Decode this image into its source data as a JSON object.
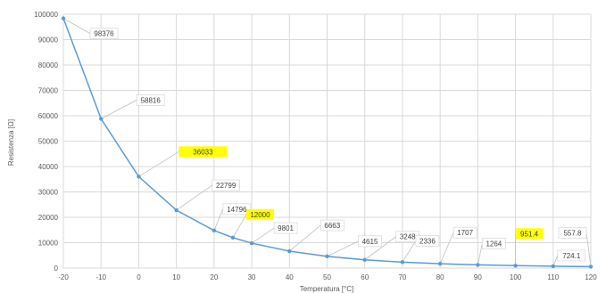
{
  "chart_data": {
    "type": "line",
    "title": "",
    "xlabel": "Temperatura [°C]",
    "ylabel": "Resistenza [Ω]",
    "xlim": [
      -20,
      120
    ],
    "ylim": [
      0,
      100000
    ],
    "x_ticks": [
      "-20",
      "-10",
      "0",
      "10",
      "20",
      "30",
      "40",
      "50",
      "60",
      "70",
      "80",
      "90",
      "100",
      "110",
      "120"
    ],
    "y_ticks": [
      "0",
      "10000",
      "20000",
      "30000",
      "40000",
      "50000",
      "60000",
      "70000",
      "80000",
      "90000",
      "100000"
    ],
    "grid": true,
    "series": [
      {
        "x": [
          -20,
          -10,
          0,
          10,
          20,
          25,
          30,
          40,
          50,
          60,
          70,
          80,
          90,
          100,
          110,
          120
        ],
        "values": [
          98376,
          58816,
          36033,
          22799,
          14796,
          12000,
          9801,
          6663,
          4615,
          3248,
          2336,
          1707,
          1264,
          951.4,
          724.1,
          557.8
        ]
      }
    ],
    "data_labels": [
      "98376",
      "58816",
      "36033",
      "22799",
      "14796",
      "12000",
      "9801",
      "6663",
      "4615",
      "3248",
      "2336",
      "1707",
      "1264",
      "951.4",
      "724.1",
      "557.8"
    ],
    "highlighted_labels": [
      "36033",
      "12000",
      "951.4"
    ],
    "colors": {
      "line": "#5b9bd5",
      "highlight": "#ffff00",
      "grid": "#d9d9d9",
      "axis_text": "#595959"
    }
  }
}
